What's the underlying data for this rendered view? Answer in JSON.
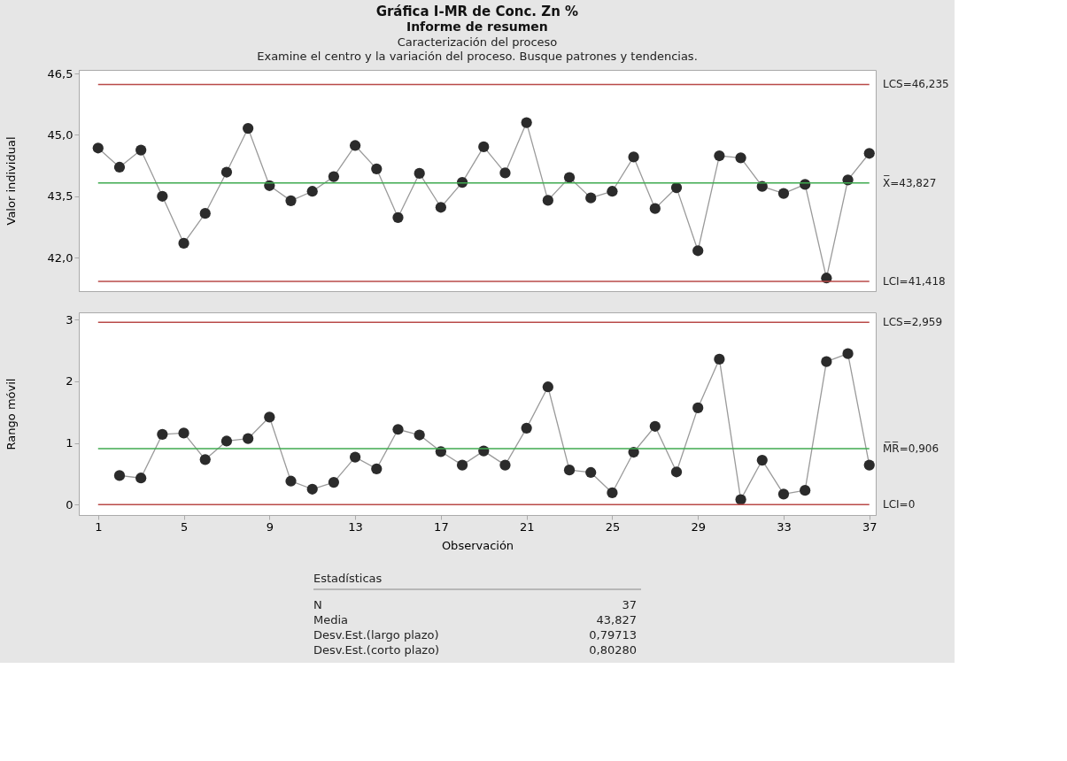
{
  "chart_data": [
    {
      "type": "line",
      "title": "Gráfica I-MR de Conc. Zn %",
      "subtitle": "Informe de resumen",
      "annotations": [
        "Caracterización del proceso",
        "Examine el centro y la variación del proceso. Busque patrones y tendencias."
      ],
      "ylabel": "Valor individual",
      "x": [
        1,
        2,
        3,
        4,
        5,
        6,
        7,
        8,
        9,
        10,
        11,
        12,
        13,
        14,
        15,
        16,
        17,
        18,
        19,
        20,
        21,
        22,
        23,
        24,
        25,
        26,
        27,
        28,
        29,
        30,
        31,
        32,
        33,
        34,
        35,
        36,
        37
      ],
      "series": [
        {
          "color": "#2b2b2b",
          "values": [
            44.68,
            44.21,
            44.63,
            43.5,
            42.35,
            43.08,
            44.09,
            45.16,
            43.76,
            43.39,
            43.62,
            43.98,
            44.74,
            44.17,
            42.98,
            44.06,
            43.23,
            43.84,
            44.71,
            44.07,
            45.3,
            43.4,
            43.96,
            43.46,
            43.62,
            44.46,
            43.2,
            43.71,
            42.17,
            44.49,
            44.44,
            43.74,
            43.57,
            43.79,
            41.5,
            43.9,
            44.55
          ]
        }
      ],
      "xlim": [
        0.1,
        37.3
      ],
      "xticks": [
        1,
        5,
        9,
        13,
        17,
        21,
        25,
        29,
        33,
        37
      ],
      "ylim": [
        41.18,
        46.59
      ],
      "yticks": [
        {
          "value": 42.0,
          "label": "42,0"
        },
        {
          "value": 43.5,
          "label": "43,5"
        },
        {
          "value": 45.0,
          "label": "45,0"
        },
        {
          "value": 46.5,
          "label": "46,5"
        }
      ],
      "tick_labels": "y",
      "marker": "circle",
      "line_style": "solid",
      "grid": false,
      "ref_lines": [
        {
          "axis": "y",
          "value": 46.235,
          "label": "LCS=46,235",
          "color": "#b94a48"
        },
        {
          "axis": "y",
          "value": 43.827,
          "label": "X̅=43,827",
          "color": "#3faa4f"
        },
        {
          "axis": "y",
          "value": 41.418,
          "label": "LCI=41,418",
          "color": "#b94a48"
        }
      ]
    },
    {
      "type": "line",
      "xlabel": "Observación",
      "ylabel": "Rango móvil",
      "x": [
        2,
        3,
        4,
        5,
        6,
        7,
        8,
        9,
        10,
        11,
        12,
        13,
        14,
        15,
        16,
        17,
        18,
        19,
        20,
        21,
        22,
        23,
        24,
        25,
        26,
        27,
        28,
        29,
        30,
        31,
        32,
        33,
        34,
        35,
        36,
        37
      ],
      "series": [
        {
          "color": "#2b2b2b",
          "values": [
            0.47,
            0.43,
            1.14,
            1.16,
            0.73,
            1.03,
            1.07,
            1.42,
            0.38,
            0.25,
            0.36,
            0.77,
            0.58,
            1.22,
            1.13,
            0.86,
            0.64,
            0.87,
            0.64,
            1.24,
            1.91,
            0.56,
            0.52,
            0.19,
            0.85,
            1.27,
            0.53,
            1.57,
            2.36,
            0.08,
            0.72,
            0.17,
            0.23,
            2.32,
            2.45,
            0.64
          ]
        }
      ],
      "xlim": [
        0.1,
        37.3
      ],
      "xticks": [
        1,
        5,
        9,
        13,
        17,
        21,
        25,
        29,
        33,
        37
      ],
      "ylim": [
        -0.17,
        3.12
      ],
      "yticks": [
        0,
        1,
        2,
        3
      ],
      "marker": "circle",
      "line_style": "solid",
      "grid": false,
      "ref_lines": [
        {
          "axis": "y",
          "value": 2.959,
          "label": "LCS=2,959",
          "color": "#b94a48"
        },
        {
          "axis": "y",
          "value": 0.906,
          "label": "M̅R̅=0,906",
          "color": "#3faa4f"
        },
        {
          "axis": "y",
          "value": 0,
          "label": "LCI=0",
          "color": "#b94a48"
        }
      ]
    },
    {
      "type": "other",
      "title": "Estadísticas",
      "annotations": [
        "N",
        "37",
        "Media",
        "43,827",
        "Desv.Est.(largo plazo)",
        "0,79713",
        "Desv.Est.(corto plazo)",
        "0,80280"
      ]
    }
  ]
}
